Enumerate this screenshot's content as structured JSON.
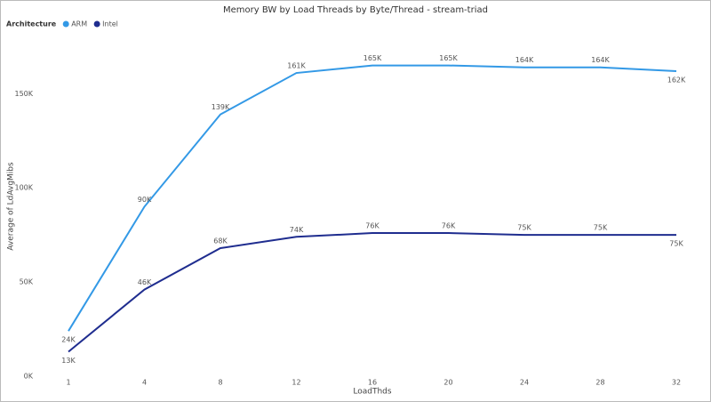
{
  "chart_data": {
    "type": "line",
    "title": "Memory BW by Load Threads by Byte/Thread - stream-triad",
    "x_label": "LoadThds",
    "y_label": "Average of LdAvgMibs",
    "legend_title": "Architecture",
    "legend_position": "top-left",
    "categories": [
      "1",
      "4",
      "8",
      "12",
      "16",
      "20",
      "24",
      "28",
      "32"
    ],
    "series": [
      {
        "name": "ARM",
        "color": "#3399e6",
        "values": [
          24000,
          90000,
          139000,
          161000,
          165000,
          165000,
          164000,
          164000,
          162000
        ],
        "value_labels": [
          "24K",
          "90K",
          "139K",
          "161K",
          "165K",
          "165K",
          "164K",
          "164K",
          "162K"
        ]
      },
      {
        "name": "Intel",
        "color": "#1f2d8f",
        "values": [
          13000,
          46000,
          68000,
          74000,
          76000,
          76000,
          75000,
          75000,
          75000
        ],
        "value_labels": [
          "13K",
          "46K",
          "68K",
          "74K",
          "76K",
          "76K",
          "75K",
          "75K",
          "75K"
        ]
      }
    ],
    "ylim": [
      0,
      170000
    ],
    "yticks": [
      {
        "value": 0,
        "label": "0K"
      },
      {
        "value": 50000,
        "label": "50K"
      },
      {
        "value": 100000,
        "label": "100K"
      },
      {
        "value": 150000,
        "label": "150K"
      }
    ],
    "grid": false
  }
}
